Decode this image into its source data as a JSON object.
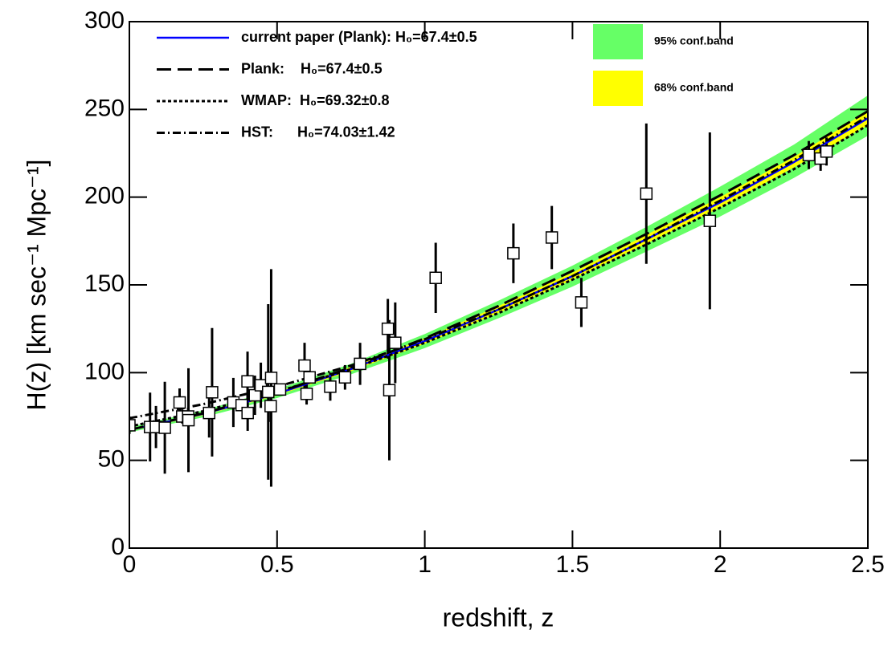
{
  "chart_data": {
    "type": "line",
    "xlabel": "redshift, z",
    "ylabel": "H(z) [km sec⁻¹ Mpc⁻¹]",
    "xlim": [
      0,
      2.5
    ],
    "ylim": [
      0,
      300
    ],
    "xticks": [
      0,
      0.5,
      1,
      1.5,
      2,
      2.5
    ],
    "yticks": [
      0,
      50,
      100,
      150,
      200,
      250,
      300
    ],
    "x": [
      0,
      0.25,
      0.5,
      0.75,
      1.0,
      1.25,
      1.5,
      1.75,
      2.0,
      2.25,
      2.5
    ],
    "bands": [
      {
        "name": "95% conf.band",
        "color": "#66ff66",
        "lower": [
          66,
          74.5,
          85.5,
          99,
          114,
          131,
          149,
          169,
          189,
          211,
          235
        ],
        "upper": [
          69,
          78.5,
          90.5,
          105,
          122,
          141,
          161,
          183,
          206,
          230,
          258
        ]
      },
      {
        "name": "68% conf.band",
        "color": "#ffff00",
        "lower": [
          66.8,
          75.7,
          87,
          100.8,
          116.4,
          134,
          153,
          173.5,
          194,
          217,
          241
        ],
        "upper": [
          68,
          77.3,
          89,
          103.2,
          119.6,
          138,
          157,
          178.5,
          200,
          223,
          249
        ]
      }
    ],
    "series": [
      {
        "name": "current paper (Plank): H₀=67.4±0.5",
        "color": "#0000ff",
        "dash": "none",
        "values": [
          67.4,
          76.5,
          88,
          102,
          118,
          136,
          155,
          176,
          197,
          220,
          245
        ]
      },
      {
        "name": "Plank:    H₀=67.4±0.5",
        "color": "#000000",
        "dash": "18,8",
        "values": [
          67.4,
          76.8,
          88.5,
          103,
          119.5,
          138,
          158,
          179,
          201,
          224,
          249
        ]
      },
      {
        "name": "WMAP:  H₀=69.32±0.8",
        "color": "#000000",
        "dash": "4,3",
        "values": [
          69.3,
          78,
          89,
          102,
          117,
          134,
          153,
          173,
          194,
          216,
          241
        ]
      },
      {
        "name": "HST:      H₀=74.03±1.42",
        "color": "#000000",
        "dash": "10,4,2,4",
        "values": [
          74,
          82,
          92,
          104,
          119,
          136,
          155,
          176,
          198,
          221,
          246
        ]
      }
    ],
    "points": {
      "x": [
        0.0,
        0.07,
        0.09,
        0.12,
        0.17,
        0.179,
        0.199,
        0.2,
        0.27,
        0.28,
        0.352,
        0.38,
        0.4,
        0.4004,
        0.425,
        0.445,
        0.47,
        0.4783,
        0.48,
        0.51,
        0.593,
        0.6,
        0.61,
        0.68,
        0.73,
        0.781,
        0.875,
        0.88,
        0.9,
        1.037,
        1.3,
        1.43,
        1.53,
        1.75,
        1.965,
        2.3,
        2.34,
        2.36
      ],
      "values": [
        70,
        69,
        69,
        68.6,
        83,
        75,
        75,
        72.9,
        77,
        88.8,
        83,
        81.5,
        95,
        77,
        87.1,
        92.8,
        89,
        80.9,
        97,
        90.4,
        104,
        87.9,
        97.3,
        92,
        97.3,
        105,
        125,
        90,
        117,
        154,
        168,
        177,
        140,
        202,
        186.5,
        224,
        222,
        226
      ],
      "errors": [
        5,
        19.6,
        12,
        26.2,
        8,
        4,
        5,
        29.6,
        14,
        36.6,
        14,
        1.9,
        17,
        10.2,
        11.2,
        12.9,
        50,
        9,
        62,
        1.9,
        13,
        6.1,
        2.1,
        8,
        7,
        12,
        17,
        40,
        23,
        20,
        17,
        18,
        14,
        40,
        50.4,
        8,
        7,
        8
      ]
    }
  }
}
